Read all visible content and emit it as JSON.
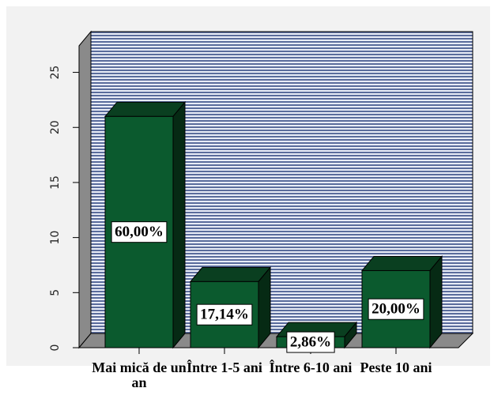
{
  "chart_data": {
    "type": "bar3d",
    "categories": [
      "Mai mică de un an",
      "Între 1-5 ani",
      "Între 6-10 ani",
      "Peste 10 ani"
    ],
    "values": [
      21,
      6,
      1,
      7
    ],
    "percent_values": [
      60,
      17.14,
      2.86,
      20
    ],
    "percent_labels": [
      "60,00%",
      "17,14%",
      "2,86%",
      "20,00%"
    ],
    "color": "#0b5a2e",
    "ylim": [
      0,
      28.7
    ],
    "yticks": [
      0,
      5,
      10,
      15,
      20,
      25
    ]
  }
}
